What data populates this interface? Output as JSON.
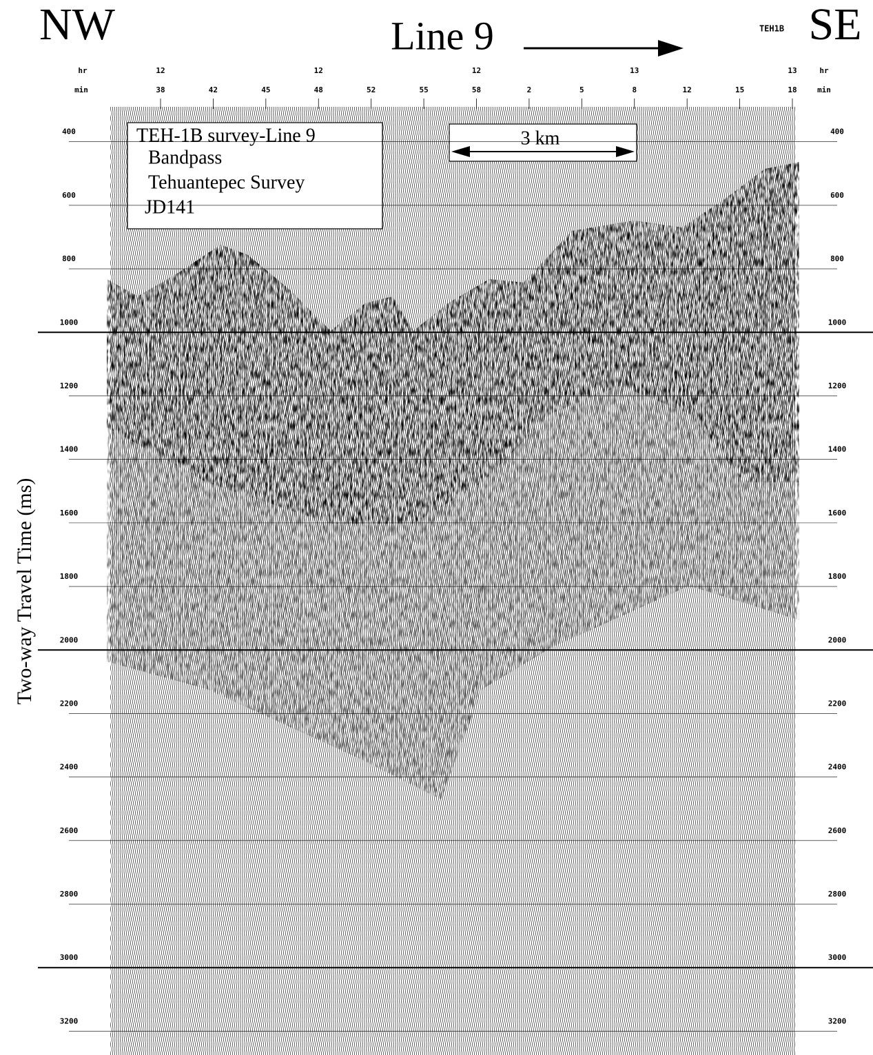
{
  "chart_data": {
    "type": "seismic",
    "title": "Line 9",
    "left_label": "NW",
    "right_label": "SE",
    "station": "TEH1B",
    "ylabel": "Two-way Travel Time (ms)",
    "annotation_box": [
      "TEH-1B survey-Line 9",
      "Bandpass",
      "Tehuantepec Survey",
      "JD141"
    ],
    "scale_bar": "3 km",
    "x_unit_hour": "hr",
    "x_unit_minute": "min",
    "minutes": [
      "38",
      "42",
      "45",
      "48",
      "52",
      "55",
      "58",
      "2",
      "5",
      "8",
      "12",
      "15",
      "18"
    ],
    "hours": [
      "12",
      null,
      null,
      "12",
      null,
      null,
      "12",
      null,
      null,
      "13",
      null,
      null,
      "13"
    ],
    "ylim": [
      290,
      3275
    ],
    "yticks": [
      400,
      600,
      800,
      1000,
      1200,
      1400,
      1600,
      1800,
      2000,
      2200,
      2400,
      2600,
      2800,
      3000,
      3200
    ],
    "major_yticks": [
      1000,
      2000,
      3000
    ],
    "grid": true
  }
}
